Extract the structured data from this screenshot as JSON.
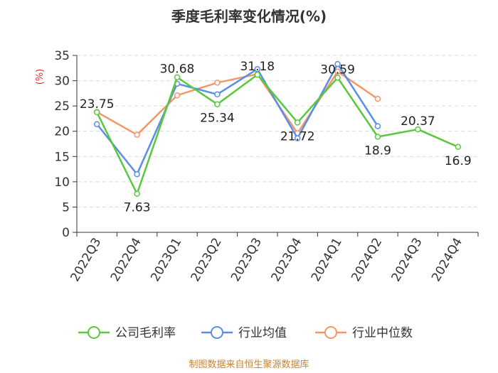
{
  "chart_data": {
    "type": "line",
    "title": "季度毛利率变化情况(%)",
    "ylabel": "(%)",
    "xlabel": "",
    "ylim": [
      0,
      35
    ],
    "yticks": [
      "0",
      "5",
      "10",
      "15",
      "20",
      "25",
      "30",
      "35"
    ],
    "categories": [
      "2022Q3",
      "2022Q4",
      "2023Q1",
      "2023Q2",
      "2023Q3",
      "2023Q4",
      "2024Q1",
      "2024Q2",
      "2024Q3",
      "2024Q4"
    ],
    "grid": true,
    "legend_position": "bottom",
    "series": [
      {
        "name": "公司毛利率",
        "color": "#5ac83c",
        "values": [
          23.75,
          7.63,
          30.68,
          25.34,
          31.18,
          21.72,
          30.59,
          18.9,
          20.37,
          16.9
        ],
        "labels": [
          "23.75",
          "7.63",
          "30.68",
          "25.34",
          "31.18",
          "21.72",
          "30.59",
          "18.9",
          "20.37",
          "16.9"
        ]
      },
      {
        "name": "行业均值",
        "color": "#5b8ee6",
        "values": [
          21.4,
          11.5,
          29.4,
          27.3,
          32.3,
          18.6,
          33.3,
          21.0,
          null,
          null
        ]
      },
      {
        "name": "行业中位数",
        "color": "#f5956a",
        "values": [
          23.8,
          19.3,
          27.1,
          29.6,
          31.3,
          19.6,
          31.8,
          26.4,
          null,
          null
        ]
      }
    ],
    "source": "制图数据来自恒生聚源数据库"
  },
  "colors": {
    "title": "#333333",
    "ylabel": "#e0302c",
    "source": "#c8832c",
    "grid": "#d9d9d9",
    "axis": "#333333"
  }
}
